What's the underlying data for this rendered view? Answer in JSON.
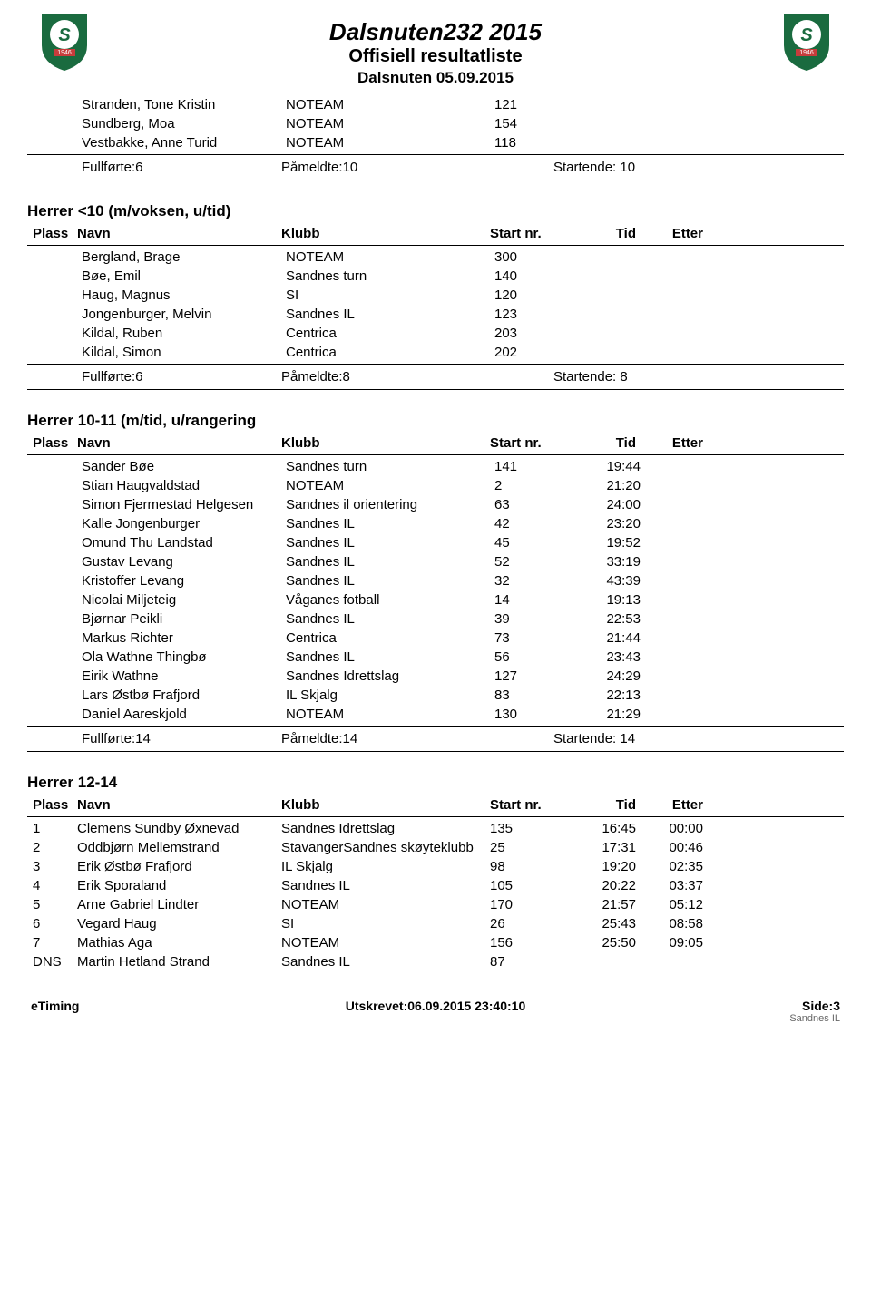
{
  "header": {
    "title": "Dalsnuten232 2015",
    "subtitle": "Offisiell resultatliste",
    "date": "Dalsnuten 05.09.2015",
    "logo_year": "1946",
    "logo_letter": "S"
  },
  "columns": {
    "plass": "Plass",
    "navn": "Navn",
    "klubb": "Klubb",
    "start": "Start nr.",
    "tid": "Tid",
    "etter": "Etter"
  },
  "section0": {
    "rows": [
      {
        "navn": "Stranden, Tone Kristin",
        "klubb": "NOTEAM",
        "start": "121"
      },
      {
        "navn": "Sundberg, Moa",
        "klubb": "NOTEAM",
        "start": "154"
      },
      {
        "navn": "Vestbakke, Anne Turid",
        "klubb": "NOTEAM",
        "start": "118"
      }
    ],
    "summary": {
      "full": "Fullførte:6",
      "pam": "Påmeldte:10",
      "start": "Startende: 10"
    }
  },
  "section1": {
    "title": "Herrer <10 (m/voksen, u/tid)",
    "rows": [
      {
        "navn": "Bergland, Brage",
        "klubb": "NOTEAM",
        "start": "300"
      },
      {
        "navn": "Bøe, Emil",
        "klubb": "Sandnes turn",
        "start": "140"
      },
      {
        "navn": "Haug, Magnus",
        "klubb": "SI",
        "start": "120"
      },
      {
        "navn": "Jongenburger, Melvin",
        "klubb": "Sandnes IL",
        "start": "123"
      },
      {
        "navn": "Kildal, Ruben",
        "klubb": "Centrica",
        "start": "203"
      },
      {
        "navn": "Kildal, Simon",
        "klubb": "Centrica",
        "start": "202"
      }
    ],
    "summary": {
      "full": "Fullførte:6",
      "pam": "Påmeldte:8",
      "start": "Startende: 8"
    }
  },
  "section2": {
    "title": "Herrer 10-11 (m/tid, u/rangering",
    "rows": [
      {
        "navn": "Sander Bøe",
        "klubb": "Sandnes turn",
        "start": "141",
        "tid": "19:44"
      },
      {
        "navn": "Stian Haugvaldstad",
        "klubb": "NOTEAM",
        "start": "2",
        "tid": "21:20"
      },
      {
        "navn": "Simon Fjermestad Helgesen",
        "klubb": "Sandnes il orientering",
        "start": "63",
        "tid": "24:00"
      },
      {
        "navn": "Kalle Jongenburger",
        "klubb": "Sandnes IL",
        "start": "42",
        "tid": "23:20"
      },
      {
        "navn": "Omund Thu Landstad",
        "klubb": "Sandnes IL",
        "start": "45",
        "tid": "19:52"
      },
      {
        "navn": "Gustav Levang",
        "klubb": "Sandnes IL",
        "start": "52",
        "tid": "33:19"
      },
      {
        "navn": "Kristoffer Levang",
        "klubb": "Sandnes IL",
        "start": "32",
        "tid": "43:39"
      },
      {
        "navn": "Nicolai Miljeteig",
        "klubb": "Våganes fotball",
        "start": "14",
        "tid": "19:13"
      },
      {
        "navn": "Bjørnar Peikli",
        "klubb": "Sandnes IL",
        "start": "39",
        "tid": "22:53"
      },
      {
        "navn": "Markus Richter",
        "klubb": "Centrica",
        "start": "73",
        "tid": "21:44"
      },
      {
        "navn": "Ola Wathne Thingbø",
        "klubb": "Sandnes IL",
        "start": "56",
        "tid": "23:43"
      },
      {
        "navn": "Eirik  Wathne",
        "klubb": "Sandnes Idrettslag",
        "start": "127",
        "tid": "24:29"
      },
      {
        "navn": "Lars Østbø Frafjord",
        "klubb": "IL Skjalg",
        "start": "83",
        "tid": "22:13"
      },
      {
        "navn": "Daniel Aareskjold",
        "klubb": "NOTEAM",
        "start": "130",
        "tid": "21:29"
      }
    ],
    "summary": {
      "full": "Fullførte:14",
      "pam": "Påmeldte:14",
      "start": "Startende: 14"
    }
  },
  "section3": {
    "title": "Herrer 12-14",
    "rows": [
      {
        "plass": "1",
        "navn": "Clemens  Sundby Øxnevad",
        "klubb": "Sandnes Idrettslag",
        "start": "135",
        "tid": "16:45",
        "etter": "00:00"
      },
      {
        "plass": "2",
        "navn": "Oddbjørn Mellemstrand",
        "klubb": "StavangerSandnes skøyteklubb",
        "start": "25",
        "tid": "17:31",
        "etter": "00:46"
      },
      {
        "plass": "3",
        "navn": "Erik Østbø Frafjord",
        "klubb": "IL Skjalg",
        "start": "98",
        "tid": "19:20",
        "etter": "02:35"
      },
      {
        "plass": "4",
        "navn": "Erik Sporaland",
        "klubb": "Sandnes IL",
        "start": "105",
        "tid": "20:22",
        "etter": "03:37"
      },
      {
        "plass": "5",
        "navn": "Arne Gabriel Lindter",
        "klubb": "NOTEAM",
        "start": "170",
        "tid": "21:57",
        "etter": "05:12"
      },
      {
        "plass": "6",
        "navn": "Vegard Haug",
        "klubb": "SI",
        "start": "26",
        "tid": "25:43",
        "etter": "08:58"
      },
      {
        "plass": "7",
        "navn": "Mathias Aga",
        "klubb": "NOTEAM",
        "start": "156",
        "tid": "25:50",
        "etter": "09:05"
      },
      {
        "plass": "DNS",
        "navn": "Martin Hetland Strand",
        "klubb": "Sandnes IL",
        "start": "87"
      }
    ]
  },
  "footer": {
    "left": "eTiming",
    "mid": "Utskrevet:06.09.2015 23:40:10",
    "right": "Side:3",
    "sub": "Sandnes IL"
  }
}
